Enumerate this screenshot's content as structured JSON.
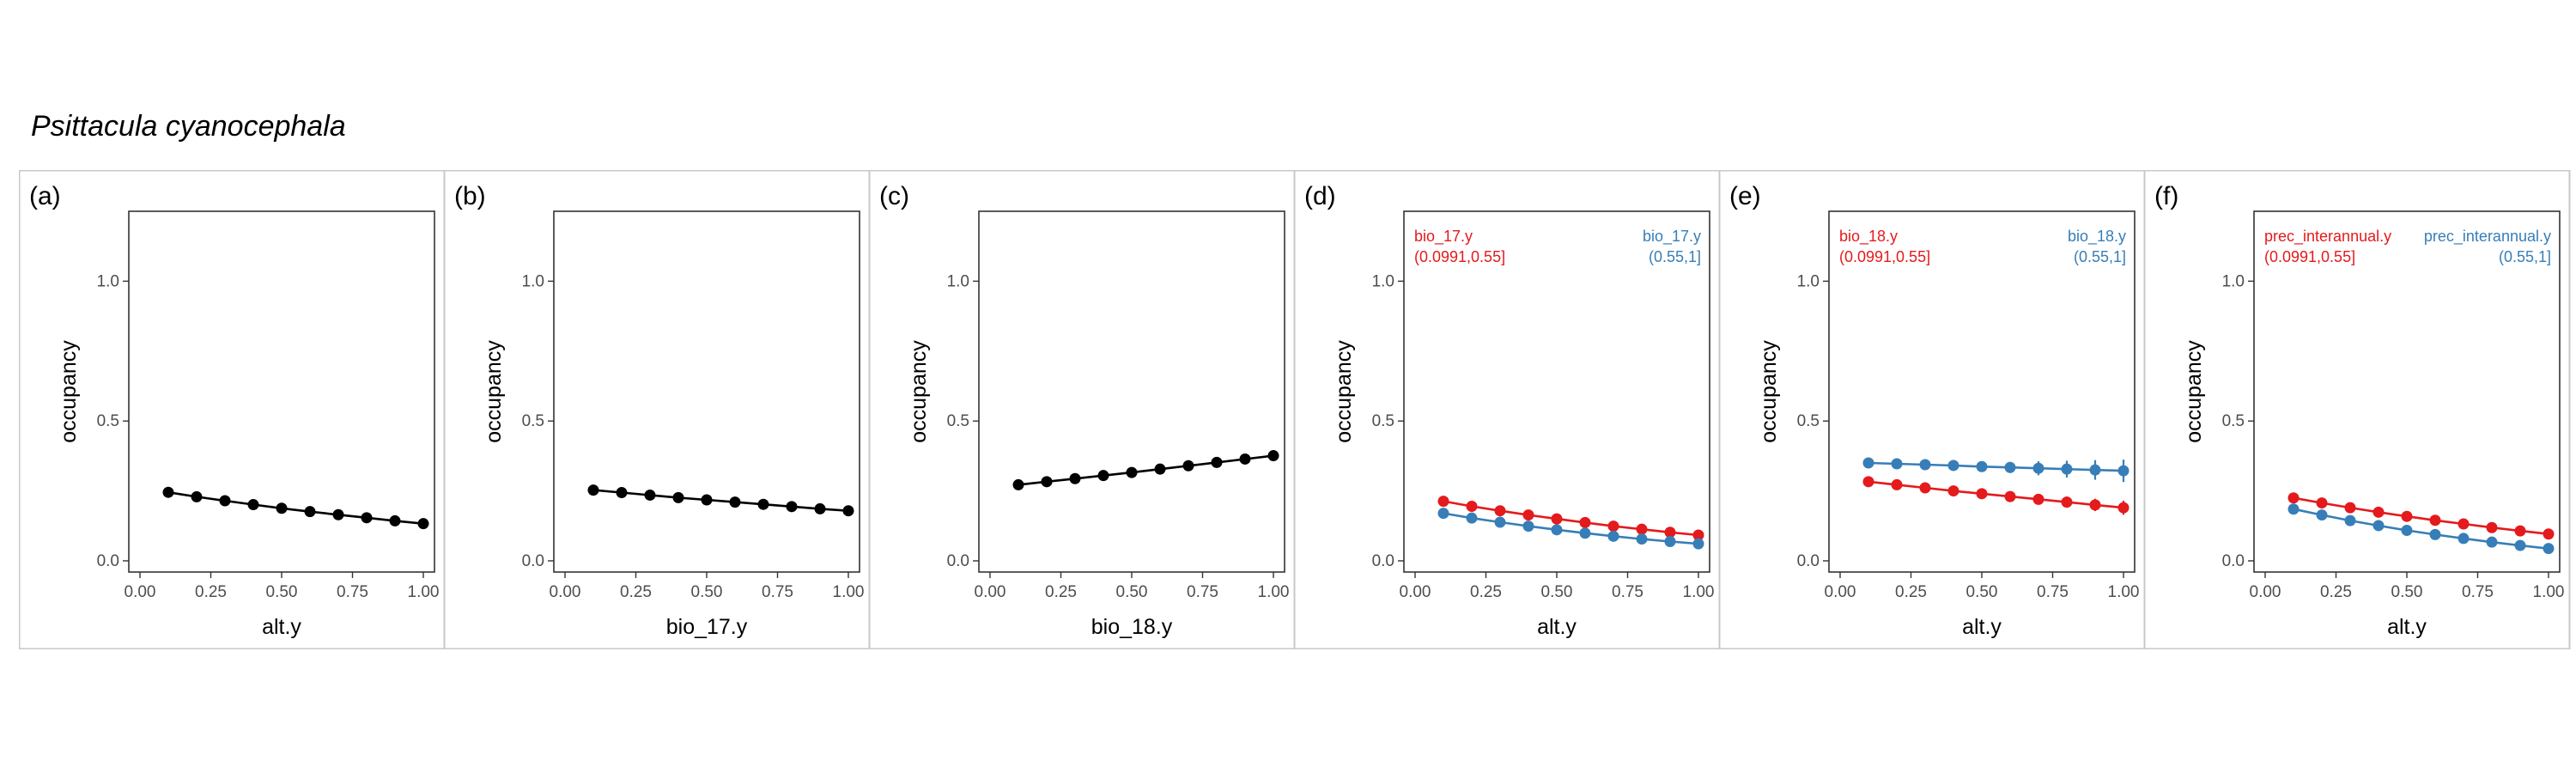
{
  "title": "Psittacula cyanocephala",
  "colors": {
    "black": "#000000",
    "red": "#e41a1c",
    "blue": "#377eb8",
    "frame": "#c8c8c8"
  },
  "chart_data": [
    {
      "type": "line",
      "panel": "(a)",
      "xlabel": "alt.y",
      "ylabel": "occupancy",
      "xlim": [
        0,
        1
      ],
      "ylim": [
        -0.04,
        1.25
      ],
      "xticks": [
        "0.00",
        "0.25",
        "0.50",
        "0.75",
        "1.00"
      ],
      "yticks": [
        "0.0",
        "0.5",
        "1.0"
      ],
      "x": [
        0.1,
        0.2,
        0.3,
        0.4,
        0.5,
        0.6,
        0.7,
        0.8,
        0.9,
        1.0
      ],
      "series": [
        {
          "color": "#000000",
          "values": [
            0.245,
            0.229,
            0.215,
            0.201,
            0.188,
            0.176,
            0.165,
            0.154,
            0.143,
            0.133
          ],
          "err": [
            0,
            0,
            0,
            0,
            0,
            0,
            0,
            0,
            0,
            0
          ]
        }
      ],
      "annotations": []
    },
    {
      "type": "line",
      "panel": "(b)",
      "xlabel": "bio_17.y",
      "ylabel": "occupancy",
      "xlim": [
        0,
        1
      ],
      "ylim": [
        -0.04,
        1.25
      ],
      "xticks": [
        "0.00",
        "0.25",
        "0.50",
        "0.75",
        "1.00"
      ],
      "yticks": [
        "0.0",
        "0.5",
        "1.0"
      ],
      "x": [
        0.1,
        0.2,
        0.3,
        0.4,
        0.5,
        0.6,
        0.7,
        0.8,
        0.9,
        1.0
      ],
      "series": [
        {
          "color": "#000000",
          "values": [
            0.253,
            0.244,
            0.235,
            0.226,
            0.218,
            0.21,
            0.202,
            0.194,
            0.186,
            0.179
          ],
          "err": [
            0,
            0,
            0,
            0,
            0,
            0,
            0,
            0,
            0,
            0
          ]
        }
      ],
      "annotations": []
    },
    {
      "type": "line",
      "panel": "(c)",
      "xlabel": "bio_18.y",
      "ylabel": "occupancy",
      "xlim": [
        0,
        1
      ],
      "ylim": [
        -0.04,
        1.25
      ],
      "xticks": [
        "0.00",
        "0.25",
        "0.50",
        "0.75",
        "1.00"
      ],
      "yticks": [
        "0.0",
        "0.5",
        "1.0"
      ],
      "x": [
        0.1,
        0.2,
        0.3,
        0.4,
        0.5,
        0.6,
        0.7,
        0.8,
        0.9,
        1.0
      ],
      "series": [
        {
          "color": "#000000",
          "values": [
            0.272,
            0.283,
            0.294,
            0.305,
            0.316,
            0.328,
            0.34,
            0.352,
            0.364,
            0.376
          ],
          "err": [
            0,
            0,
            0,
            0,
            0,
            0,
            0,
            0,
            0,
            0
          ]
        }
      ],
      "annotations": []
    },
    {
      "type": "line",
      "panel": "(d)",
      "xlabel": "alt.y",
      "ylabel": "occupancy",
      "xlim": [
        0,
        1
      ],
      "ylim": [
        -0.04,
        1.25
      ],
      "xticks": [
        "0.00",
        "0.25",
        "0.50",
        "0.75",
        "1.00"
      ],
      "yticks": [
        "0.0",
        "0.5",
        "1.0"
      ],
      "x": [
        0.1,
        0.2,
        0.3,
        0.4,
        0.5,
        0.6,
        0.7,
        0.8,
        0.9,
        1.0
      ],
      "series": [
        {
          "color": "#e41a1c",
          "values": [
            0.213,
            0.195,
            0.179,
            0.164,
            0.15,
            0.137,
            0.124,
            0.113,
            0.102,
            0.092
          ],
          "err": [
            0,
            0,
            0,
            0,
            0,
            0,
            0,
            0,
            0,
            0
          ]
        },
        {
          "color": "#377eb8",
          "values": [
            0.17,
            0.153,
            0.138,
            0.124,
            0.111,
            0.099,
            0.088,
            0.078,
            0.069,
            0.061
          ],
          "err": [
            0,
            0,
            0,
            0,
            0,
            0,
            0,
            0,
            0,
            0
          ]
        }
      ],
      "annotations": [
        {
          "align": "left",
          "color": "#e41a1c",
          "lines": [
            "bio_17.y",
            "(0.0991,0.55]"
          ]
        },
        {
          "align": "right",
          "color": "#377eb8",
          "lines": [
            "bio_17.y",
            "(0.55,1]"
          ]
        }
      ]
    },
    {
      "type": "line",
      "panel": "(e)",
      "xlabel": "alt.y",
      "ylabel": "occupancy",
      "xlim": [
        0,
        1
      ],
      "ylim": [
        -0.04,
        1.25
      ],
      "xticks": [
        "0.00",
        "0.25",
        "0.50",
        "0.75",
        "1.00"
      ],
      "yticks": [
        "0.0",
        "0.5",
        "1.0"
      ],
      "x": [
        0.1,
        0.2,
        0.3,
        0.4,
        0.5,
        0.6,
        0.7,
        0.8,
        0.9,
        1.0
      ],
      "series": [
        {
          "color": "#e41a1c",
          "values": [
            0.283,
            0.272,
            0.261,
            0.25,
            0.24,
            0.23,
            0.22,
            0.21,
            0.2,
            0.19
          ],
          "err": [
            0.008,
            0.008,
            0.009,
            0.01,
            0.012,
            0.015,
            0.018,
            0.02,
            0.022,
            0.025
          ]
        },
        {
          "color": "#377eb8",
          "values": [
            0.35,
            0.347,
            0.344,
            0.341,
            0.337,
            0.334,
            0.331,
            0.328,
            0.325,
            0.322
          ],
          "err": [
            0.008,
            0.009,
            0.01,
            0.012,
            0.015,
            0.02,
            0.025,
            0.03,
            0.035,
            0.04
          ]
        }
      ],
      "annotations": [
        {
          "align": "left",
          "color": "#e41a1c",
          "lines": [
            "bio_18.y",
            "(0.0991,0.55]"
          ]
        },
        {
          "align": "right",
          "color": "#377eb8",
          "lines": [
            "bio_18.y",
            "(0.55,1]"
          ]
        }
      ]
    },
    {
      "type": "line",
      "panel": "(f)",
      "xlabel": "alt.y",
      "ylabel": "occupancy",
      "xlim": [
        0,
        1
      ],
      "ylim": [
        -0.04,
        1.25
      ],
      "xticks": [
        "0.00",
        "0.25",
        "0.50",
        "0.75",
        "1.00"
      ],
      "yticks": [
        "0.0",
        "0.5",
        "1.0"
      ],
      "x": [
        0.1,
        0.2,
        0.3,
        0.4,
        0.5,
        0.6,
        0.7,
        0.8,
        0.9,
        1.0
      ],
      "series": [
        {
          "color": "#e41a1c",
          "values": [
            0.225,
            0.207,
            0.19,
            0.174,
            0.159,
            0.145,
            0.132,
            0.119,
            0.107,
            0.096
          ],
          "err": [
            0.01,
            0,
            0,
            0,
            0,
            0,
            0,
            0,
            0,
            0
          ]
        },
        {
          "color": "#377eb8",
          "values": [
            0.185,
            0.164,
            0.144,
            0.126,
            0.109,
            0.094,
            0.08,
            0.067,
            0.055,
            0.044
          ],
          "err": [
            0.015,
            0,
            0,
            0,
            0,
            0,
            0,
            0,
            0,
            0
          ]
        }
      ],
      "annotations": [
        {
          "align": "left",
          "color": "#e41a1c",
          "lines": [
            "prec_interannual.y",
            "(0.0991,0.55]"
          ]
        },
        {
          "align": "right",
          "color": "#377eb8",
          "lines": [
            "prec_interannual.y",
            "(0.55,1]"
          ]
        }
      ]
    }
  ]
}
